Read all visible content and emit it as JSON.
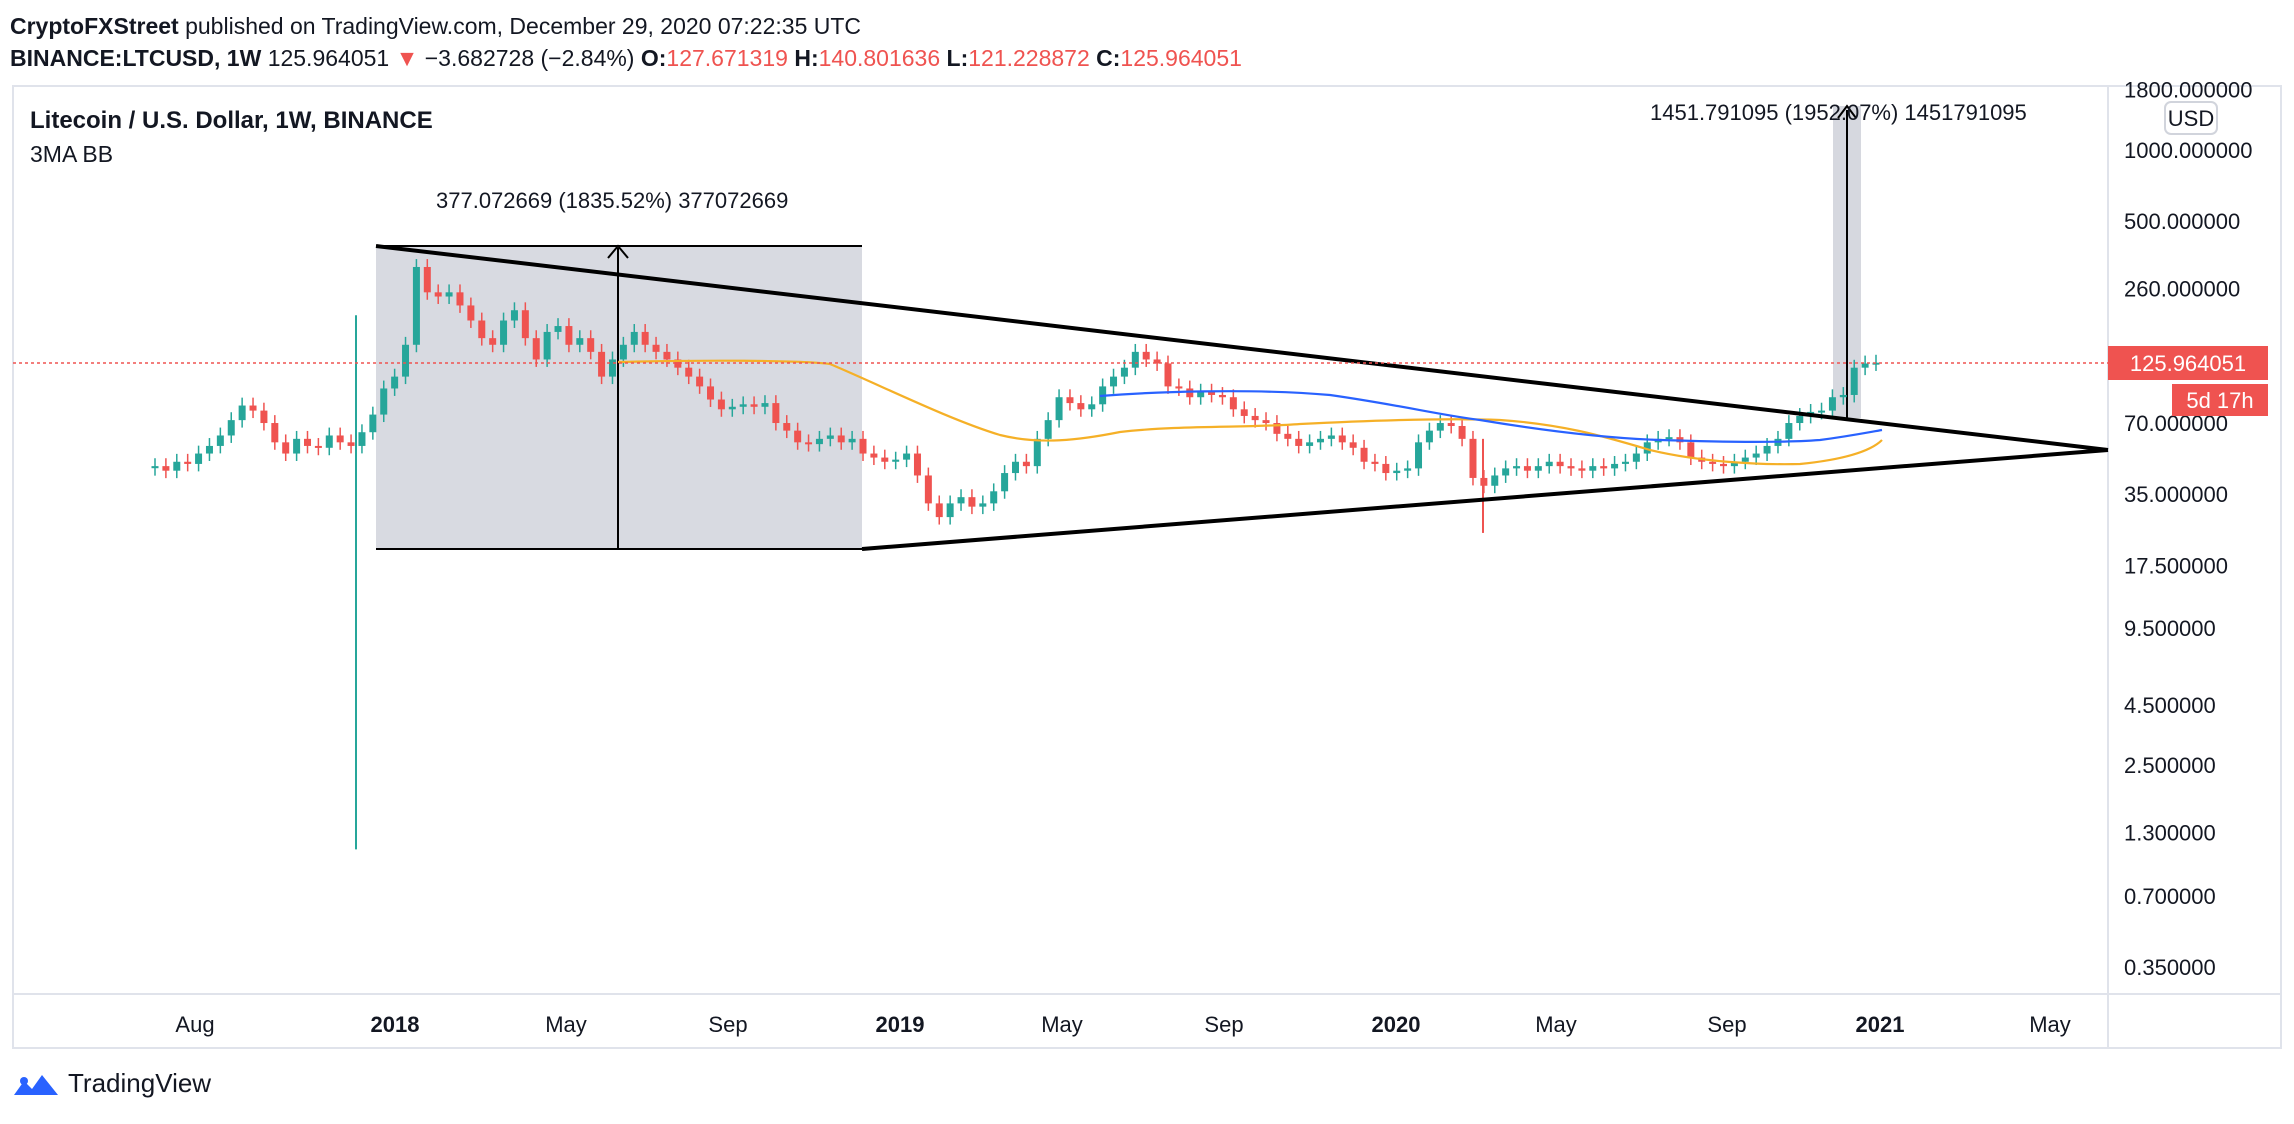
{
  "header": {
    "author": "CryptoFXStreet",
    "published": "published on TradingView.com, December 29, 2020 07:22:35 UTC",
    "symbol": "BINANCE:LTCUSD, 1W",
    "last": "125.964051",
    "change_arrow": "▼",
    "change": "−3.682728 (−2.84%)",
    "o_label": "O:",
    "o_value": "127.671319",
    "h_label": "H:",
    "h_value": "140.801636",
    "l_label": "L:",
    "l_value": "121.228872",
    "c_label": "C:",
    "c_value": "125.964051"
  },
  "chart_data": {
    "type": "candlestick",
    "title": "Litecoin / U.S. Dollar, 1W, BINANCE",
    "indicator": "3MA BB",
    "currency": "USD",
    "scale": "log",
    "y_ticks": [
      "1800.000000",
      "1000.000000",
      "500.000000",
      "260.000000",
      "70.000000",
      "35.000000",
      "17.500000",
      "9.500000",
      "4.500000",
      "2.500000",
      "1.300000",
      "0.700000",
      "0.350000"
    ],
    "x_ticks": [
      "Aug",
      "2018",
      "May",
      "Sep",
      "2019",
      "May",
      "Sep",
      "2020",
      "May",
      "Sep",
      "2021",
      "May"
    ],
    "last_price_label": "125.964051",
    "countdown_label": "5d 17h",
    "measure_2018": "377.072669 (1835.52%) 377072669",
    "measure_2020": "1451.791095 (1952.07%) 1451791095",
    "colors": {
      "up": "#26a69a",
      "down": "#ef5350",
      "ma_orange": "#f5b027",
      "ma_blue": "#2962ff",
      "price_line": "#ef5350",
      "range_fill": "#d1d4dc"
    },
    "ohlc_weekly_approx": {
      "note_values": "weekly closes, USD, read from log chart",
      "closes": [
        46,
        44,
        48,
        47,
        52,
        56,
        62,
        72,
        83,
        79,
        70,
        58,
        52,
        60,
        56,
        55,
        62,
        58,
        56,
        64,
        76,
        98,
        110,
        150,
        320,
        250,
        240,
        250,
        220,
        190,
        160,
        150,
        190,
        210,
        160,
        130,
        170,
        180,
        150,
        160,
        140,
        110,
        130,
        150,
        170,
        150,
        140,
        130,
        120,
        110,
        100,
        88,
        80,
        82,
        84,
        82,
        85,
        70,
        65,
        58,
        57,
        60,
        62,
        58,
        60,
        52,
        50,
        48,
        49,
        52,
        42,
        32,
        28,
        32,
        34,
        31,
        32,
        36,
        43,
        48,
        46,
        60,
        72,
        90,
        85,
        80,
        84,
        100,
        110,
        120,
        140,
        130,
        125,
        100,
        98,
        90,
        95,
        92,
        90,
        80,
        75,
        72,
        70,
        63,
        60,
        56,
        58,
        60,
        62,
        58,
        55,
        48,
        47,
        43,
        44,
        45,
        58,
        65,
        70,
        68,
        60,
        41,
        38,
        42,
        45,
        46,
        44,
        46,
        48,
        46,
        45,
        44,
        46,
        45,
        47,
        48,
        52,
        58,
        60,
        61,
        58,
        50,
        48,
        47,
        46,
        48,
        50,
        52,
        56,
        60,
        70,
        75,
        78,
        79,
        90,
        92,
        120,
        125,
        126
      ]
    }
  }
}
